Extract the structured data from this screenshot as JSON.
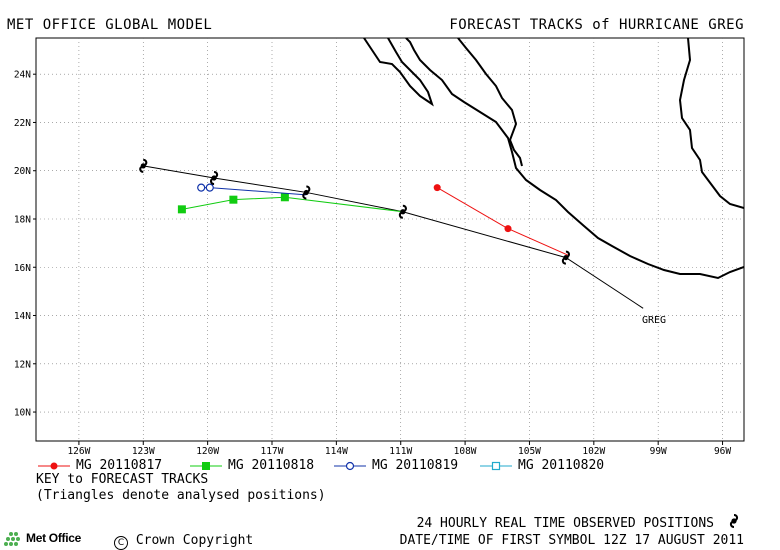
{
  "header": {
    "left_title": "MET OFFICE GLOBAL MODEL",
    "right_title": "FORECAST TRACKS of HURRICANE GREG"
  },
  "map": {
    "lon_ticks": [
      -126,
      -123,
      -120,
      -117,
      -114,
      -111,
      -108,
      -105,
      -102,
      -99,
      -96
    ],
    "lon_labels": [
      "126W",
      "123W",
      "120W",
      "117W",
      "114W",
      "111W",
      "108W",
      "105W",
      "102W",
      "99W",
      "96W"
    ],
    "lat_ticks": [
      10,
      12,
      14,
      16,
      18,
      20,
      22,
      24
    ],
    "lat_labels": [
      "10N",
      "12N",
      "14N",
      "16N",
      "18N",
      "20N",
      "22N",
      "24N"
    ],
    "lon_range": [
      -128,
      -95
    ],
    "lat_range": [
      8.8,
      25.5
    ],
    "storm_label": "GREG",
    "observed_track": [
      [
        -99.7,
        14.3
      ],
      [
        -103.3,
        16.4
      ],
      [
        -110.9,
        18.3
      ],
      [
        -115.4,
        19.1
      ],
      [
        -119.7,
        19.7
      ],
      [
        -123.0,
        20.2
      ]
    ],
    "forecast_tracks": [
      {
        "name": "MG 20110817",
        "color": "#ee1111",
        "marker": "filled-circle",
        "points": [
          [
            -103.2,
            16.5
          ],
          [
            -106.0,
            17.6
          ],
          [
            -109.3,
            19.3
          ]
        ]
      },
      {
        "name": "MG 20110818",
        "color": "#11cc11",
        "marker": "filled-square",
        "points": [
          [
            -110.9,
            18.3
          ],
          [
            -116.4,
            18.9
          ],
          [
            -118.8,
            18.8
          ],
          [
            -121.2,
            18.4
          ]
        ]
      },
      {
        "name": "MG 20110819",
        "color": "#1133aa",
        "marker": "open-circle",
        "points": [
          [
            -115.4,
            19.0
          ],
          [
            -119.9,
            19.3
          ],
          [
            -120.3,
            19.3
          ]
        ]
      },
      {
        "name": "MG 20110820",
        "color": "#22aacc",
        "marker": "open-square",
        "points": []
      }
    ],
    "observed_marker_positions": [
      [
        -103.3,
        16.4
      ],
      [
        -110.9,
        18.3
      ],
      [
        -115.4,
        19.1
      ],
      [
        -119.7,
        19.7
      ],
      [
        -123.0,
        20.2
      ]
    ]
  },
  "legend": {
    "key_title": "KEY to FORECAST TRACKS",
    "key_note": "(Triangles denote analysed positions)"
  },
  "footer": {
    "observed_text": "24 HOURLY REAL TIME OBSERVED POSITIONS",
    "date_text": "DATE/TIME OF FIRST SYMBOL 12Z 17 AUGUST 2011",
    "copyright": "Crown Copyright",
    "logo_text": "Met Office"
  }
}
